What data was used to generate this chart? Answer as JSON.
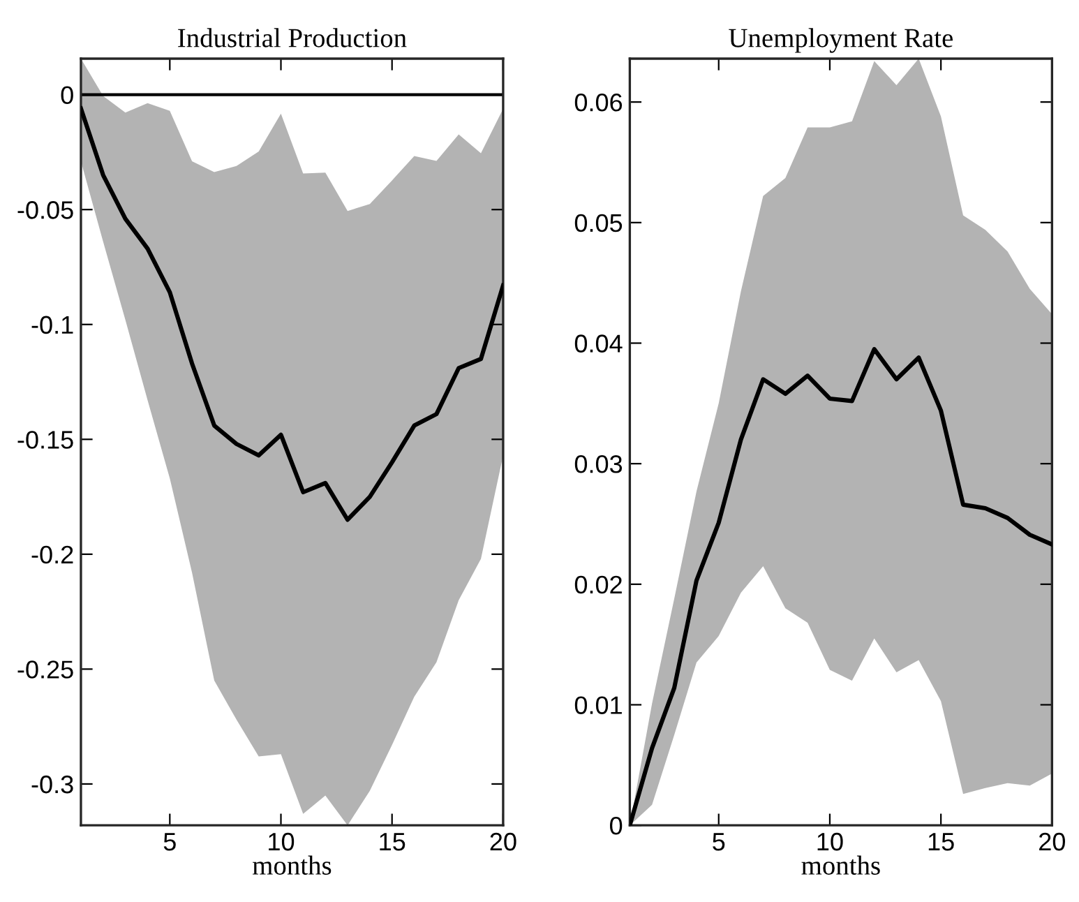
{
  "chart_data": [
    {
      "type": "line",
      "title": "Industrial Production",
      "xlabel": "months",
      "x": [
        1,
        2,
        3,
        4,
        5,
        6,
        7,
        8,
        9,
        10,
        11,
        12,
        13,
        14,
        15,
        16,
        17,
        18,
        19,
        20
      ],
      "series": [
        {
          "color": "#000000",
          "values": [
            -0.006,
            -0.035,
            -0.054,
            -0.067,
            -0.086,
            -0.117,
            -0.144,
            -0.152,
            -0.157,
            -0.148,
            -0.173,
            -0.169,
            -0.185,
            -0.175,
            -0.16,
            -0.144,
            -0.139,
            -0.119,
            -0.115,
            -0.083
          ],
          "lower": [
            -0.029,
            -0.064,
            -0.098,
            -0.133,
            -0.167,
            -0.208,
            -0.255,
            -0.272,
            -0.288,
            -0.287,
            -0.313,
            -0.305,
            -0.318,
            -0.303,
            -0.283,
            -0.262,
            -0.247,
            -0.22,
            -0.202,
            -0.157
          ],
          "upper": [
            0.0157,
            -0.0006,
            -0.0078,
            -0.0037,
            -0.007,
            -0.029,
            -0.0337,
            -0.031,
            -0.0247,
            -0.0082,
            -0.0343,
            -0.0339,
            -0.0506,
            -0.0476,
            -0.0373,
            -0.0267,
            -0.0288,
            -0.0173,
            -0.0255,
            -0.0061
          ]
        }
      ],
      "xlim": [
        1,
        20
      ],
      "xticks": [
        5,
        10,
        15,
        20
      ],
      "ylim": [
        -0.318,
        0.0157
      ],
      "yticks": [
        -0.3,
        -0.25,
        -0.2,
        -0.15,
        -0.1,
        -0.05,
        0
      ],
      "ref_lines": [
        {
          "axis": "y",
          "value": 0,
          "color": "#000000"
        }
      ],
      "grid": false,
      "marker": "none",
      "line_style": "solid"
    },
    {
      "type": "line",
      "title": "Unemployment Rate",
      "xlabel": "months",
      "x": [
        1,
        2,
        3,
        4,
        5,
        6,
        7,
        8,
        9,
        10,
        11,
        12,
        13,
        14,
        15,
        16,
        17,
        18,
        19,
        20
      ],
      "series": [
        {
          "color": "#000000",
          "values": [
            0,
            0.0064,
            0.0114,
            0.0203,
            0.0251,
            0.032,
            0.037,
            0.0358,
            0.0373,
            0.0354,
            0.0352,
            0.0395,
            0.037,
            0.0388,
            0.0344,
            0.0266,
            0.0263,
            0.0255,
            0.0241,
            0.0233
          ],
          "lower": [
            0,
            0.0017,
            0.0075,
            0.0135,
            0.0157,
            0.0193,
            0.0215,
            0.018,
            0.0168,
            0.0129,
            0.012,
            0.0155,
            0.0127,
            0.0137,
            0.0103,
            0.0026,
            0.0031,
            0.0035,
            0.0033,
            0.0043
          ],
          "upper": [
            0,
            0.0101,
            0.0188,
            0.0277,
            0.035,
            0.0443,
            0.0522,
            0.0537,
            0.0579,
            0.0579,
            0.0584,
            0.0634,
            0.0614,
            0.0636,
            0.0588,
            0.0506,
            0.0494,
            0.0476,
            0.0445,
            0.0424
          ]
        }
      ],
      "xlim": [
        1,
        20
      ],
      "xticks": [
        5,
        10,
        15,
        20
      ],
      "ylim": [
        0,
        0.0636
      ],
      "yticks": [
        0,
        0.01,
        0.02,
        0.03,
        0.04,
        0.05,
        0.06
      ],
      "grid": false,
      "marker": "none",
      "line_style": "solid"
    }
  ]
}
